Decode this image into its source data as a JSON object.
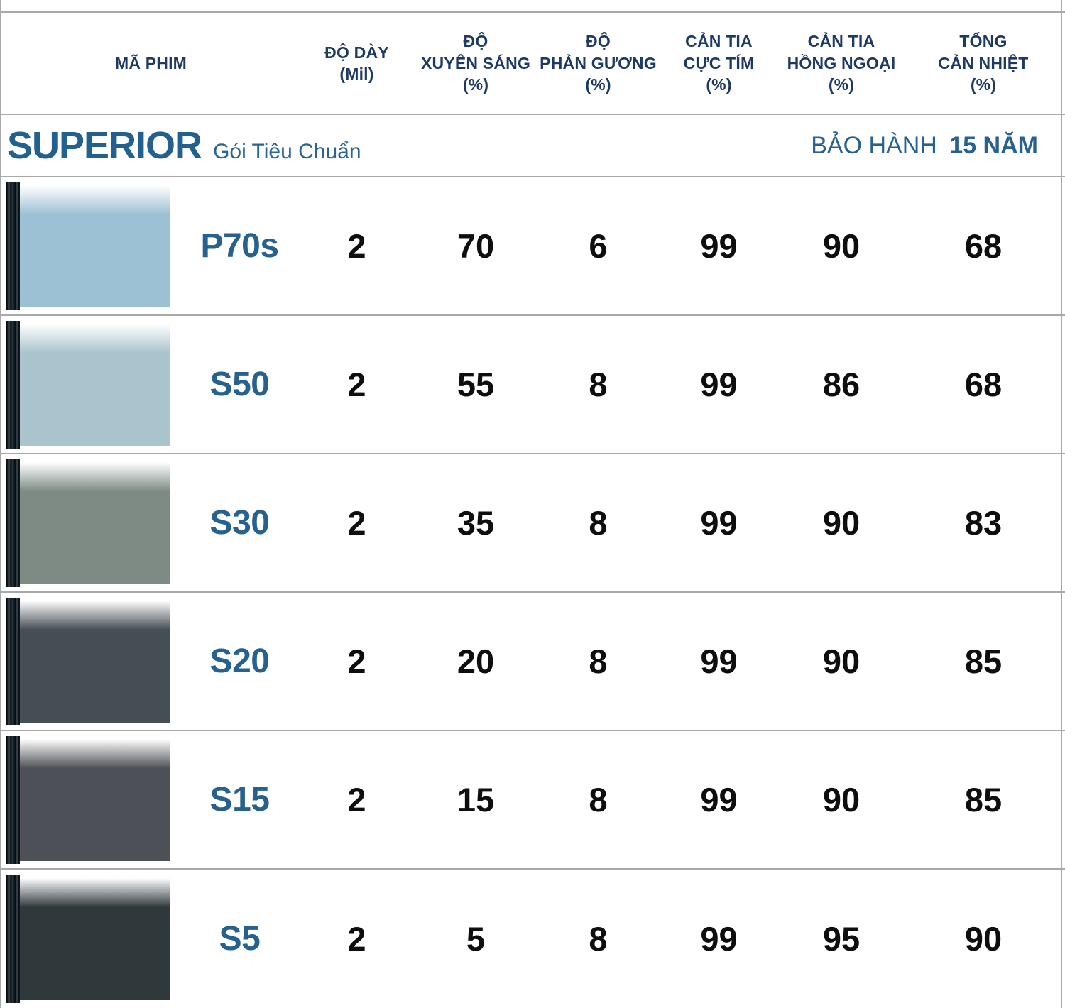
{
  "header": {
    "columns": [
      "MÃ PHIM",
      "ĐỘ DÀY\n(Mil)",
      "ĐỘ\nXUYÊN SÁNG\n(%)",
      "ĐỘ\nPHẢN GƯƠNG\n(%)",
      "CẢN TIA\nCỰC TÍM\n(%)",
      "CẢN TIA\nHỒNG NGOẠI\n(%)",
      "TỔNG\nCẢN NHIỆT\n(%)"
    ]
  },
  "section": {
    "name": "SUPERIOR",
    "subtitle": "Gói Tiêu Chuẩn",
    "warranty_label": "BẢO HÀNH",
    "warranty_value": "15 NĂM"
  },
  "colors": {
    "heading_navy": "#1d3a64",
    "accent_blue": "#26618f",
    "rule_gray": "#a9a9a9",
    "number_black": "#0e0e0e"
  },
  "table": {
    "rows": [
      {
        "code": "P70s",
        "swatch_color": "#9cc0d4",
        "values": [
          "2",
          "70",
          "6",
          "99",
          "90",
          "68"
        ]
      },
      {
        "code": "S50",
        "swatch_color": "#aac4ce",
        "values": [
          "2",
          "55",
          "8",
          "99",
          "86",
          "68"
        ]
      },
      {
        "code": "S30",
        "swatch_color": "#7d8b84",
        "values": [
          "2",
          "35",
          "8",
          "99",
          "90",
          "83"
        ]
      },
      {
        "code": "S20",
        "swatch_color": "#454e54",
        "values": [
          "2",
          "20",
          "8",
          "99",
          "90",
          "85"
        ]
      },
      {
        "code": "S15",
        "swatch_color": "#4d5157",
        "values": [
          "2",
          "15",
          "8",
          "99",
          "90",
          "85"
        ]
      },
      {
        "code": "S5",
        "swatch_color": "#2f383b",
        "values": [
          "2",
          "5",
          "8",
          "99",
          "95",
          "90"
        ]
      }
    ]
  }
}
